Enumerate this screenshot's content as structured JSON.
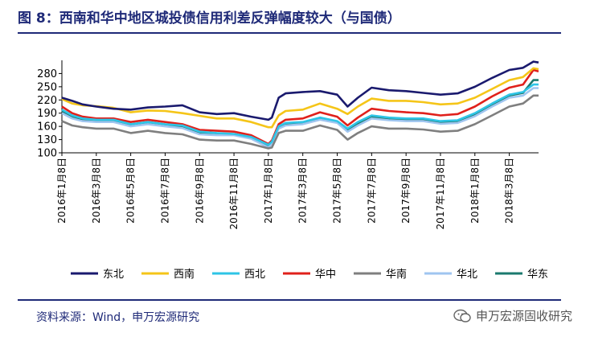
{
  "figure_title": "图 8：西南和华中地区城投债信用利差反弹幅度较大（与国债）",
  "source": "资料来源：Wind，申万宏源研究",
  "brand": "申万宏源固收研究",
  "chart_data": {
    "type": "line",
    "title": "",
    "xlabel": "",
    "ylabel": "",
    "ylim": [
      100,
      310
    ],
    "yticks": [
      100,
      130,
      160,
      190,
      220,
      250,
      280
    ],
    "x_tick_labels": [
      "2016年1月8日",
      "2016年3月8日",
      "2016年5月8日",
      "2016年7月8日",
      "2016年9月8日",
      "2016年11月8日",
      "2017年1月8日",
      "2017年3月8日",
      "2017年5月8日",
      "2017年7月8日",
      "2017年9月8日",
      "2017年11月8日",
      "2018年1月8日",
      "2018年3月8日"
    ],
    "x_range": [
      0,
      13.85
    ],
    "grid": false,
    "legend_position": "bottom",
    "series": [
      {
        "name": "东北",
        "color": "#1a1a6e",
        "points": [
          [
            0,
            225
          ],
          [
            0.3,
            218
          ],
          [
            0.6,
            210
          ],
          [
            1,
            205
          ],
          [
            1.5,
            200
          ],
          [
            2,
            198
          ],
          [
            2.5,
            203
          ],
          [
            3,
            205
          ],
          [
            3.5,
            208
          ],
          [
            4,
            192
          ],
          [
            4.5,
            188
          ],
          [
            5,
            190
          ],
          [
            5.5,
            182
          ],
          [
            6,
            175
          ],
          [
            6.1,
            180
          ],
          [
            6.3,
            225
          ],
          [
            6.5,
            235
          ],
          [
            7,
            238
          ],
          [
            7.5,
            240
          ],
          [
            8,
            232
          ],
          [
            8.3,
            205
          ],
          [
            8.6,
            225
          ],
          [
            9,
            248
          ],
          [
            9.5,
            242
          ],
          [
            10,
            240
          ],
          [
            10.5,
            236
          ],
          [
            11,
            232
          ],
          [
            11.5,
            235
          ],
          [
            12,
            250
          ],
          [
            12.5,
            270
          ],
          [
            13,
            288
          ],
          [
            13.4,
            293
          ],
          [
            13.7,
            307
          ],
          [
            13.85,
            305
          ]
        ]
      },
      {
        "name": "西南",
        "color": "#f5c518",
        "points": [
          [
            0,
            222
          ],
          [
            0.3,
            212
          ],
          [
            0.6,
            208
          ],
          [
            1,
            206
          ],
          [
            1.5,
            202
          ],
          [
            2,
            192
          ],
          [
            2.5,
            196
          ],
          [
            3,
            195
          ],
          [
            3.5,
            190
          ],
          [
            4,
            184
          ],
          [
            4.5,
            178
          ],
          [
            5,
            178
          ],
          [
            5.5,
            170
          ],
          [
            6,
            158
          ],
          [
            6.1,
            158
          ],
          [
            6.3,
            185
          ],
          [
            6.5,
            195
          ],
          [
            7,
            198
          ],
          [
            7.5,
            212
          ],
          [
            8,
            200
          ],
          [
            8.3,
            188
          ],
          [
            8.6,
            205
          ],
          [
            9,
            223
          ],
          [
            9.5,
            218
          ],
          [
            10,
            218
          ],
          [
            10.5,
            215
          ],
          [
            11,
            210
          ],
          [
            11.5,
            212
          ],
          [
            12,
            225
          ],
          [
            12.5,
            245
          ],
          [
            13,
            265
          ],
          [
            13.4,
            272
          ],
          [
            13.7,
            292
          ],
          [
            13.85,
            290
          ]
        ]
      },
      {
        "name": "西北",
        "color": "#2ec4e6",
        "points": [
          [
            0,
            198
          ],
          [
            0.3,
            185
          ],
          [
            0.6,
            178
          ],
          [
            1,
            175
          ],
          [
            1.5,
            175
          ],
          [
            2,
            165
          ],
          [
            2.5,
            170
          ],
          [
            3,
            165
          ],
          [
            3.5,
            162
          ],
          [
            4,
            148
          ],
          [
            4.5,
            145
          ],
          [
            5,
            143
          ],
          [
            5.5,
            136
          ],
          [
            6,
            118
          ],
          [
            6.1,
            125
          ],
          [
            6.3,
            160
          ],
          [
            6.5,
            168
          ],
          [
            7,
            170
          ],
          [
            7.5,
            180
          ],
          [
            8,
            172
          ],
          [
            8.3,
            155
          ],
          [
            8.6,
            170
          ],
          [
            9,
            185
          ],
          [
            9.5,
            180
          ],
          [
            10,
            178
          ],
          [
            10.5,
            178
          ],
          [
            11,
            172
          ],
          [
            11.5,
            174
          ],
          [
            12,
            190
          ],
          [
            12.5,
            212
          ],
          [
            13,
            232
          ],
          [
            13.4,
            238
          ],
          [
            13.7,
            255
          ],
          [
            13.85,
            255
          ]
        ]
      },
      {
        "name": "华中",
        "color": "#e0201b",
        "points": [
          [
            0,
            205
          ],
          [
            0.3,
            190
          ],
          [
            0.6,
            182
          ],
          [
            1,
            178
          ],
          [
            1.5,
            178
          ],
          [
            2,
            170
          ],
          [
            2.5,
            175
          ],
          [
            3,
            170
          ],
          [
            3.5,
            165
          ],
          [
            4,
            152
          ],
          [
            4.5,
            150
          ],
          [
            5,
            148
          ],
          [
            5.5,
            140
          ],
          [
            6,
            120
          ],
          [
            6.1,
            128
          ],
          [
            6.3,
            165
          ],
          [
            6.5,
            175
          ],
          [
            7,
            178
          ],
          [
            7.5,
            192
          ],
          [
            8,
            182
          ],
          [
            8.3,
            162
          ],
          [
            8.6,
            180
          ],
          [
            9,
            200
          ],
          [
            9.5,
            195
          ],
          [
            10,
            192
          ],
          [
            10.5,
            190
          ],
          [
            11,
            185
          ],
          [
            11.5,
            188
          ],
          [
            12,
            205
          ],
          [
            12.5,
            228
          ],
          [
            13,
            248
          ],
          [
            13.4,
            255
          ],
          [
            13.7,
            288
          ],
          [
            13.85,
            285
          ]
        ]
      },
      {
        "name": "华南",
        "color": "#7f7f7f",
        "points": [
          [
            0,
            172
          ],
          [
            0.3,
            162
          ],
          [
            0.6,
            158
          ],
          [
            1,
            155
          ],
          [
            1.5,
            155
          ],
          [
            2,
            145
          ],
          [
            2.5,
            150
          ],
          [
            3,
            145
          ],
          [
            3.5,
            142
          ],
          [
            4,
            130
          ],
          [
            4.5,
            128
          ],
          [
            5,
            128
          ],
          [
            5.5,
            120
          ],
          [
            6,
            110
          ],
          [
            6.1,
            112
          ],
          [
            6.3,
            145
          ],
          [
            6.5,
            150
          ],
          [
            7,
            150
          ],
          [
            7.5,
            162
          ],
          [
            8,
            152
          ],
          [
            8.3,
            130
          ],
          [
            8.6,
            145
          ],
          [
            9,
            160
          ],
          [
            9.5,
            155
          ],
          [
            10,
            155
          ],
          [
            10.5,
            153
          ],
          [
            11,
            148
          ],
          [
            11.5,
            150
          ],
          [
            12,
            165
          ],
          [
            12.5,
            185
          ],
          [
            13,
            205
          ],
          [
            13.4,
            212
          ],
          [
            13.7,
            230
          ],
          [
            13.85,
            230
          ]
        ]
      },
      {
        "name": "华北",
        "color": "#9fc5f0",
        "points": [
          [
            0,
            190
          ],
          [
            0.3,
            178
          ],
          [
            0.6,
            172
          ],
          [
            1,
            170
          ],
          [
            1.5,
            170
          ],
          [
            2,
            160
          ],
          [
            2.5,
            165
          ],
          [
            3,
            160
          ],
          [
            3.5,
            156
          ],
          [
            4,
            142
          ],
          [
            4.5,
            140
          ],
          [
            5,
            140
          ],
          [
            5.5,
            132
          ],
          [
            6,
            112
          ],
          [
            6.1,
            120
          ],
          [
            6.3,
            155
          ],
          [
            6.5,
            162
          ],
          [
            7,
            165
          ],
          [
            7.5,
            175
          ],
          [
            8,
            168
          ],
          [
            8.3,
            148
          ],
          [
            8.6,
            162
          ],
          [
            9,
            178
          ],
          [
            9.5,
            174
          ],
          [
            10,
            172
          ],
          [
            10.5,
            172
          ],
          [
            11,
            166
          ],
          [
            11.5,
            168
          ],
          [
            12,
            183
          ],
          [
            12.5,
            205
          ],
          [
            13,
            225
          ],
          [
            13.4,
            230
          ],
          [
            13.7,
            247
          ],
          [
            13.85,
            247
          ]
        ]
      },
      {
        "name": "华东",
        "color": "#1b7a6e",
        "points": [
          [
            0,
            195
          ],
          [
            0.3,
            182
          ],
          [
            0.6,
            175
          ],
          [
            1,
            172
          ],
          [
            1.5,
            172
          ],
          [
            2,
            163
          ],
          [
            2.5,
            168
          ],
          [
            3,
            163
          ],
          [
            3.5,
            160
          ],
          [
            4,
            145
          ],
          [
            4.5,
            142
          ],
          [
            5,
            142
          ],
          [
            5.5,
            134
          ],
          [
            6,
            115
          ],
          [
            6.1,
            122
          ],
          [
            6.3,
            158
          ],
          [
            6.5,
            165
          ],
          [
            7,
            168
          ],
          [
            7.5,
            178
          ],
          [
            8,
            170
          ],
          [
            8.3,
            152
          ],
          [
            8.6,
            166
          ],
          [
            9,
            182
          ],
          [
            9.5,
            178
          ],
          [
            10,
            176
          ],
          [
            10.5,
            176
          ],
          [
            11,
            170
          ],
          [
            11.5,
            172
          ],
          [
            12,
            187
          ],
          [
            12.5,
            210
          ],
          [
            13,
            230
          ],
          [
            13.4,
            236
          ],
          [
            13.7,
            265
          ],
          [
            13.85,
            265
          ]
        ]
      }
    ]
  }
}
